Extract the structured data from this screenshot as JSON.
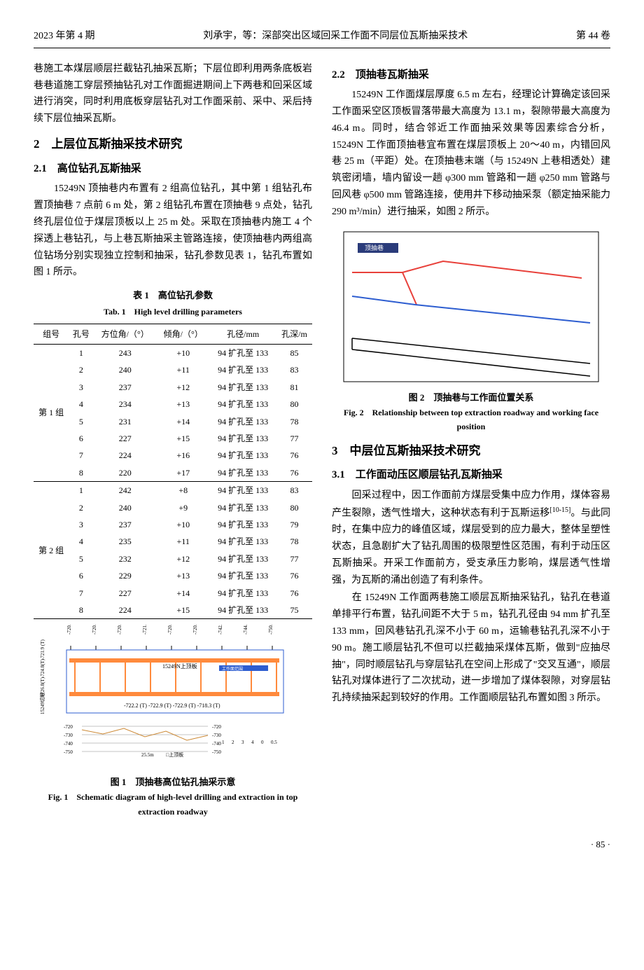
{
  "header": {
    "left": "2023 年第 4 期",
    "center": "刘承宇，等：深部突出区域回采工作面不同层位瓦斯抽采技术",
    "right": "第 44 卷"
  },
  "intro": "巷施工本煤层顺层拦截钻孔抽采瓦斯；下层位即利用两条底板岩巷巷道施工穿层预抽钻孔对工作面掘进期间上下两巷和回采区域进行消突，同时利用底板穿层钻孔对工作面采前、采中、采后持续下层位抽采瓦斯。",
  "s2": {
    "title": "2　上层位瓦斯抽采技术研究"
  },
  "s21": {
    "title": "2.1　高位钻孔瓦斯抽采",
    "body": "　　15249N 顶抽巷内布置有 2 组高位钻孔，其中第 1 组钻孔布置顶抽巷 7 点前 6 m 处，第 2 组钻孔布置在顶抽巷 9 点处，钻孔终孔层位位于煤层顶板以上 25 m 处。采取在顶抽巷内施工 4 个探透上巷钻孔，与上巷瓦斯抽采主管路连接，使顶抽巷内两组高位钻场分别实现独立控制和抽采，钻孔参数见表 1，钻孔布置如图 1 所示。"
  },
  "table1": {
    "caption_cn": "表 1　高位钻孔参数",
    "caption_en": "Tab. 1　High level drilling parameters",
    "headers": [
      "组号",
      "孔号",
      "方位角/（°）",
      "倾角/（°）",
      "孔径/mm",
      "孔深/m"
    ],
    "group1_label": "第 1 组",
    "rows1": [
      [
        "1",
        "243",
        "+10",
        "94 扩孔至 133",
        "85"
      ],
      [
        "2",
        "240",
        "+11",
        "94 扩孔至 133",
        "83"
      ],
      [
        "3",
        "237",
        "+12",
        "94 扩孔至 133",
        "81"
      ],
      [
        "4",
        "234",
        "+13",
        "94 扩孔至 133",
        "80"
      ],
      [
        "5",
        "231",
        "+14",
        "94 扩孔至 133",
        "78"
      ],
      [
        "6",
        "227",
        "+15",
        "94 扩孔至 133",
        "77"
      ],
      [
        "7",
        "224",
        "+16",
        "94 扩孔至 133",
        "76"
      ],
      [
        "8",
        "220",
        "+17",
        "94 扩孔至 133",
        "76"
      ]
    ],
    "group2_label": "第 2 组",
    "rows2": [
      [
        "1",
        "242",
        "+8",
        "94 扩孔至 133",
        "83"
      ],
      [
        "2",
        "240",
        "+9",
        "94 扩孔至 133",
        "80"
      ],
      [
        "3",
        "237",
        "+10",
        "94 扩孔至 133",
        "79"
      ],
      [
        "4",
        "235",
        "+11",
        "94 扩孔至 133",
        "78"
      ],
      [
        "5",
        "232",
        "+12",
        "94 扩孔至 133",
        "77"
      ],
      [
        "6",
        "229",
        "+13",
        "94 扩孔至 133",
        "76"
      ],
      [
        "7",
        "227",
        "+14",
        "94 扩孔至 133",
        "76"
      ],
      [
        "8",
        "224",
        "+15",
        "94 扩孔至 133",
        "75"
      ]
    ]
  },
  "fig1": {
    "caption_cn": "图 1　顶抽巷高位钻孔抽采示意",
    "caption_en": "Fig. 1　Schematic diagram of high-level drilling and extraction in top extraction roadway",
    "colors": {
      "beam": "#ff8a3c",
      "frame": "#2d5dd0",
      "bg": "#fff",
      "grid": "#bbb"
    },
    "top_labels": [
      "-720.2 (T)",
      "-720.6 (T)",
      "-720.7 (T)",
      "-721.2 (T)",
      "-720.8 (T)",
      "-720.9 (T)",
      "-742.3 (T)",
      "-744.8 (T)",
      "-750.8 (T)"
    ],
    "side_labels": [
      "-721.9 (T)",
      "-724.8(T)",
      "-726.8(T)",
      "15249切眼"
    ],
    "inner": {
      "upper": "15249N上顶板",
      "lower": "15249N回风巷",
      "dims": "-722.2 (T)   -722.9 (T)   -722.9 (T)   -718.3 (T)"
    },
    "bottom_axis": {
      "ticks": [
        "-720",
        "-730",
        "-740",
        "-750"
      ],
      "legend": "□上顶板",
      "dist": "25.5m",
      "scale": [
        "1",
        "2",
        "3",
        "4",
        "0",
        "0.5"
      ]
    }
  },
  "s22": {
    "title": "2.2　顶抽巷瓦斯抽采",
    "body": "　　15249N 工作面煤层厚度 6.5 m 左右，经理论计算确定该回采工作面采空区顶板冒落带最大高度为 13.1 m，裂隙带最大高度为 46.4 m。同时，结合邻近工作面抽采效果等因素综合分析，15249N 工作面顶抽巷宜布置在煤层顶板上 20～40 m，内错回风巷 25 m（平距）处。在顶抽巷末端（与 15249N 上巷相透处）建筑密闭墙，墙内留设一趟 φ300 mm 管路和一趟 φ250 mm 管路与回风巷 φ500 mm 管路连接，使用井下移动抽采泵（额定抽采能力 290 m³/min）进行抽采，如图 2 所示。"
  },
  "fig2": {
    "caption_cn": "图 2　顶抽巷与工作面位置关系",
    "caption_en": "Fig. 2　Relationship between top extraction roadway and working face position",
    "colors": {
      "red": "#e8403a",
      "blue": "#2d5dd0",
      "black": "#000",
      "bg": "#fff",
      "box": "#2a3b7a",
      "boxtext": "顶抽巷"
    }
  },
  "s3": {
    "title": "3　中层位瓦斯抽采技术研究"
  },
  "s31": {
    "title": "3.1　工作面动压区顺层钻孔瓦斯抽采",
    "p1": "　　回采过程中，因工作面前方煤层受集中应力作用，煤体容易产生裂隙，透气性增大，这种状态有利于瓦斯运移",
    "cite": "[10-15]",
    "p1b": "。与此同时，在集中应力的峰值区域，煤层受到的应力最大，整体呈塑性状态，且急剧扩大了钻孔周围的极限塑性区范围，有利于动压区瓦斯抽采。开采工作面前方，受支承压力影响，煤层透气性增强，为瓦斯的涌出创造了有利条件。",
    "p2": "　　在 15249N 工作面两巷施工顺层瓦斯抽采钻孔，钻孔在巷道单排平行布置，钻孔间距不大于 5 m，钻孔孔径由 94 mm 扩孔至 133 mm，回风巷钻孔孔深不小于 60 m，运输巷钻孔孔深不小于 90 m。施工顺层钻孔不但可以拦截抽采煤体瓦斯，做到\"应抽尽抽\"，同时顺层钻孔与穿层钻孔在空间上形成了\"交叉互通\"，顺层钻孔对煤体进行了二次扰动，进一步增加了煤体裂隙，对穿层钻孔持续抽采起到较好的作用。工作面顺层钻孔布置如图 3 所示。"
  },
  "page": "· 85 ·"
}
